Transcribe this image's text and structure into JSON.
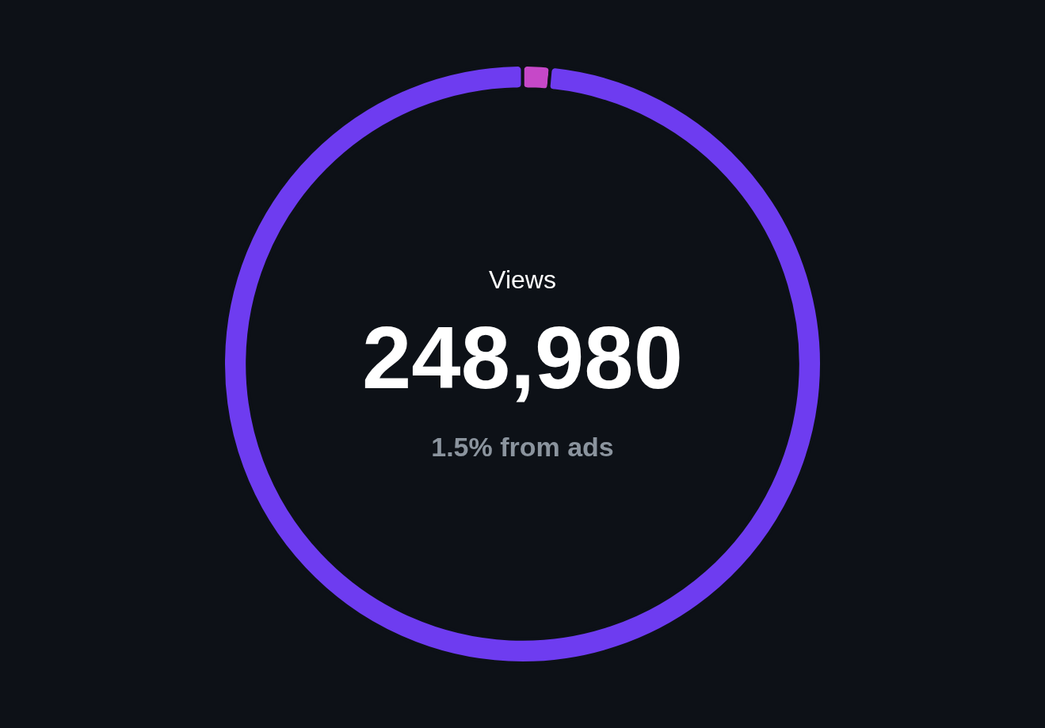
{
  "chart_data": {
    "type": "donut",
    "title": "Views",
    "annotations": [
      "248,980",
      "1.5% from ads"
    ],
    "categories": [
      null,
      null
    ],
    "values": [
      1.5,
      98.5
    ],
    "colors": [
      "#c648c8",
      "#6e3cf0"
    ]
  }
}
